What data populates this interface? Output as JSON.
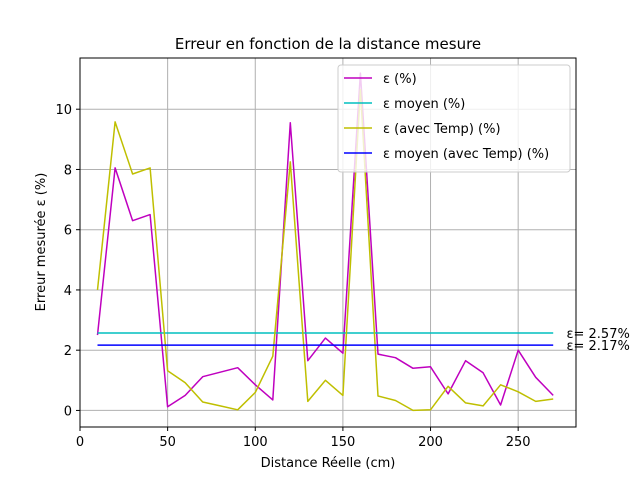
{
  "chart_data": {
    "type": "line",
    "title": "Erreur en fonction de la distance mesure",
    "xlabel": "Distance Réelle (cm)",
    "ylabel": "Erreur mesurée ε (%)",
    "xlim": [
      0,
      283
    ],
    "ylim": [
      -0.55,
      11.7
    ],
    "xticks": [
      0,
      50,
      100,
      150,
      200,
      250
    ],
    "yticks": [
      0,
      2,
      4,
      6,
      8,
      10
    ],
    "grid": true,
    "legend_position": "top-right",
    "series": [
      {
        "name": "ε (%)",
        "color": "#bf00bf",
        "x": [
          10,
          20,
          30,
          40,
          50,
          60,
          70,
          80,
          90,
          100,
          110,
          120,
          130,
          140,
          150,
          160,
          170,
          180,
          190,
          200,
          210,
          220,
          230,
          240,
          250,
          260,
          270
        ],
        "y": [
          2.5,
          8.05,
          6.3,
          6.5,
          0.12,
          0.5,
          1.12,
          1.27,
          1.42,
          0.85,
          0.35,
          9.55,
          1.65,
          2.4,
          1.9,
          11.2,
          1.87,
          1.75,
          1.4,
          1.45,
          0.55,
          1.65,
          1.25,
          0.18,
          2.0,
          1.1,
          0.5
        ]
      },
      {
        "name": "ε moyen (%)",
        "color": "#00bfbf",
        "x": [
          10,
          270
        ],
        "y": [
          2.57,
          2.57
        ]
      },
      {
        "name": "ε (avec Temp) (%)",
        "color": "#bfbf00",
        "x": [
          10,
          20,
          30,
          40,
          50,
          60,
          70,
          80,
          90,
          100,
          110,
          120,
          130,
          140,
          150,
          160,
          170,
          180,
          190,
          200,
          210,
          220,
          230,
          240,
          250,
          260,
          270
        ],
        "y": [
          4.0,
          9.58,
          7.85,
          8.05,
          1.32,
          0.92,
          0.28,
          0.15,
          0.02,
          0.6,
          1.8,
          8.25,
          0.3,
          1.0,
          0.5,
          10.65,
          0.48,
          0.33,
          0.0,
          0.02,
          0.8,
          0.25,
          0.15,
          0.85,
          0.62,
          0.3,
          0.38
        ]
      },
      {
        "name": "ε moyen (avec Temp) (%)",
        "color": "#0000ff",
        "x": [
          10,
          270
        ],
        "y": [
          2.17,
          2.17
        ]
      }
    ],
    "annotations": [
      {
        "text": "ε= 2.57%",
        "x": 273,
        "y": 2.57
      },
      {
        "text": "ε= 2.17%",
        "x": 273,
        "y": 2.17
      }
    ]
  }
}
